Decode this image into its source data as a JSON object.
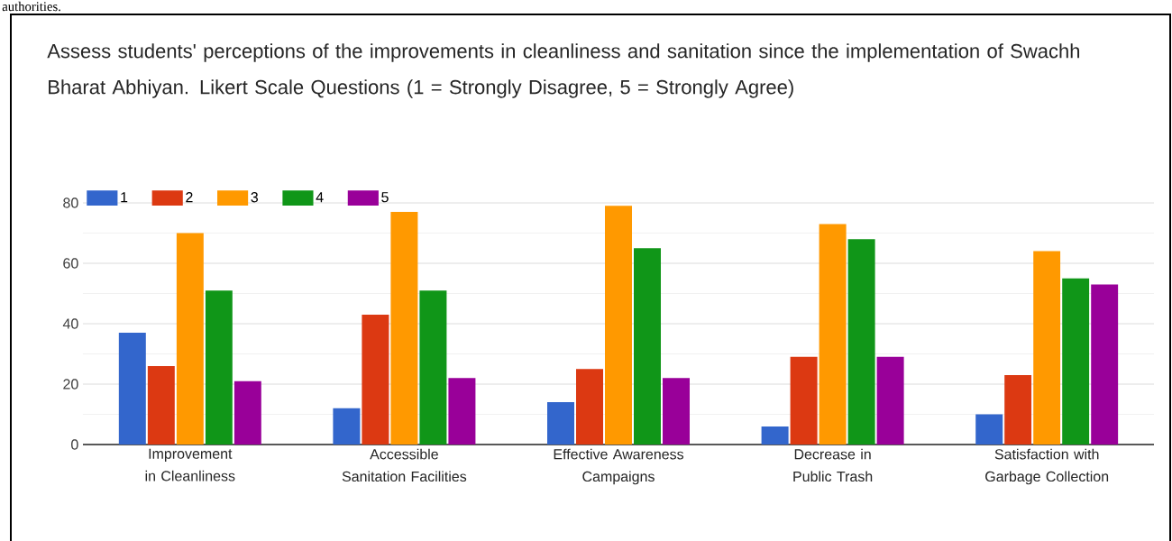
{
  "chart_data": {
    "type": "bar",
    "title": "Assess students' perceptions of the improvements in cleanliness and sanitation since the implementation of Swachh Bharat Abhiyan.  Likert Scale Questions (1 = Strongly Disagree, 5 = Strongly Agree)",
    "annotations": [
      "authorities."
    ],
    "categories": [
      "Improvement in Cleanliness",
      "Accessible Sanitation Facilities",
      "Effective Awareness Campaigns",
      "Decrease in Public Trash",
      "Satisfaction with Garbage Collection"
    ],
    "series": [
      {
        "name": "1",
        "color": "#3366cc",
        "values": [
          37,
          12,
          14,
          6,
          10
        ]
      },
      {
        "name": "2",
        "color": "#dc3912",
        "values": [
          26,
          43,
          25,
          29,
          23
        ]
      },
      {
        "name": "3",
        "color": "#ff9900",
        "values": [
          70,
          77,
          79,
          73,
          64
        ]
      },
      {
        "name": "4",
        "color": "#109618",
        "values": [
          51,
          51,
          65,
          68,
          55
        ]
      },
      {
        "name": "5",
        "color": "#990099",
        "values": [
          21,
          22,
          22,
          29,
          53
        ]
      }
    ],
    "ylim": [
      0,
      80
    ],
    "yticks": [
      0,
      20,
      40,
      60,
      80
    ],
    "grid": "y",
    "legend": "top left"
  }
}
